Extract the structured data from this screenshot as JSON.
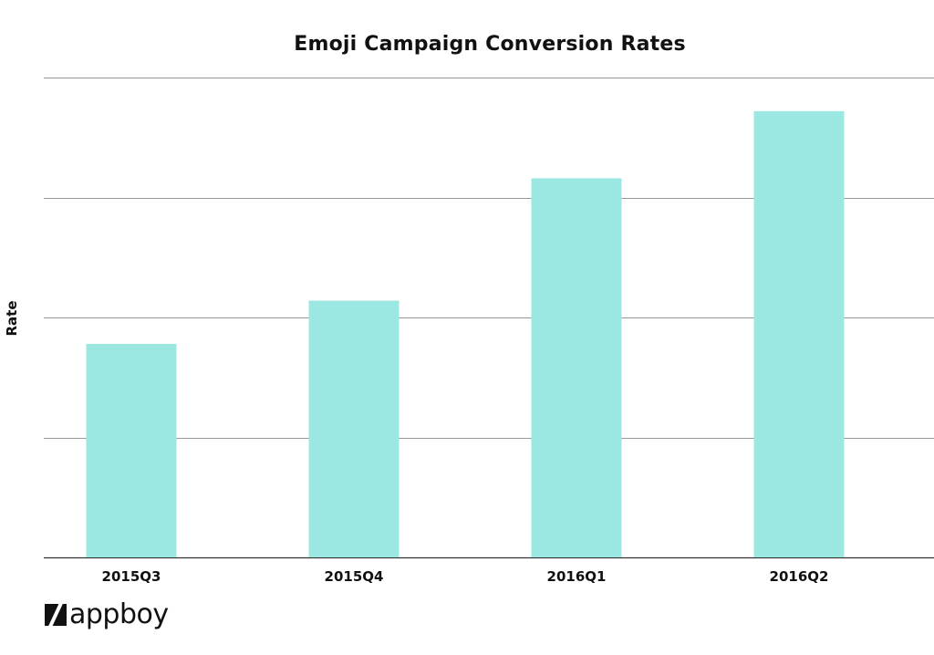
{
  "chart_data": {
    "type": "bar",
    "title": "Emoji Campaign Conversion Rates",
    "xlabel": "",
    "ylabel": "Rate",
    "categories": [
      "2015Q3",
      "2015Q4",
      "2016Q1",
      "2016Q2"
    ],
    "values": [
      1.78,
      2.14,
      3.16,
      3.72
    ],
    "ylim": [
      0,
      4
    ],
    "y_tick_labels_shown": false,
    "grid": true,
    "bar_color": "#9be8e2",
    "grid_color": "#999999",
    "text_color": "#111111"
  },
  "branding": {
    "logo_text": "appboy"
  }
}
